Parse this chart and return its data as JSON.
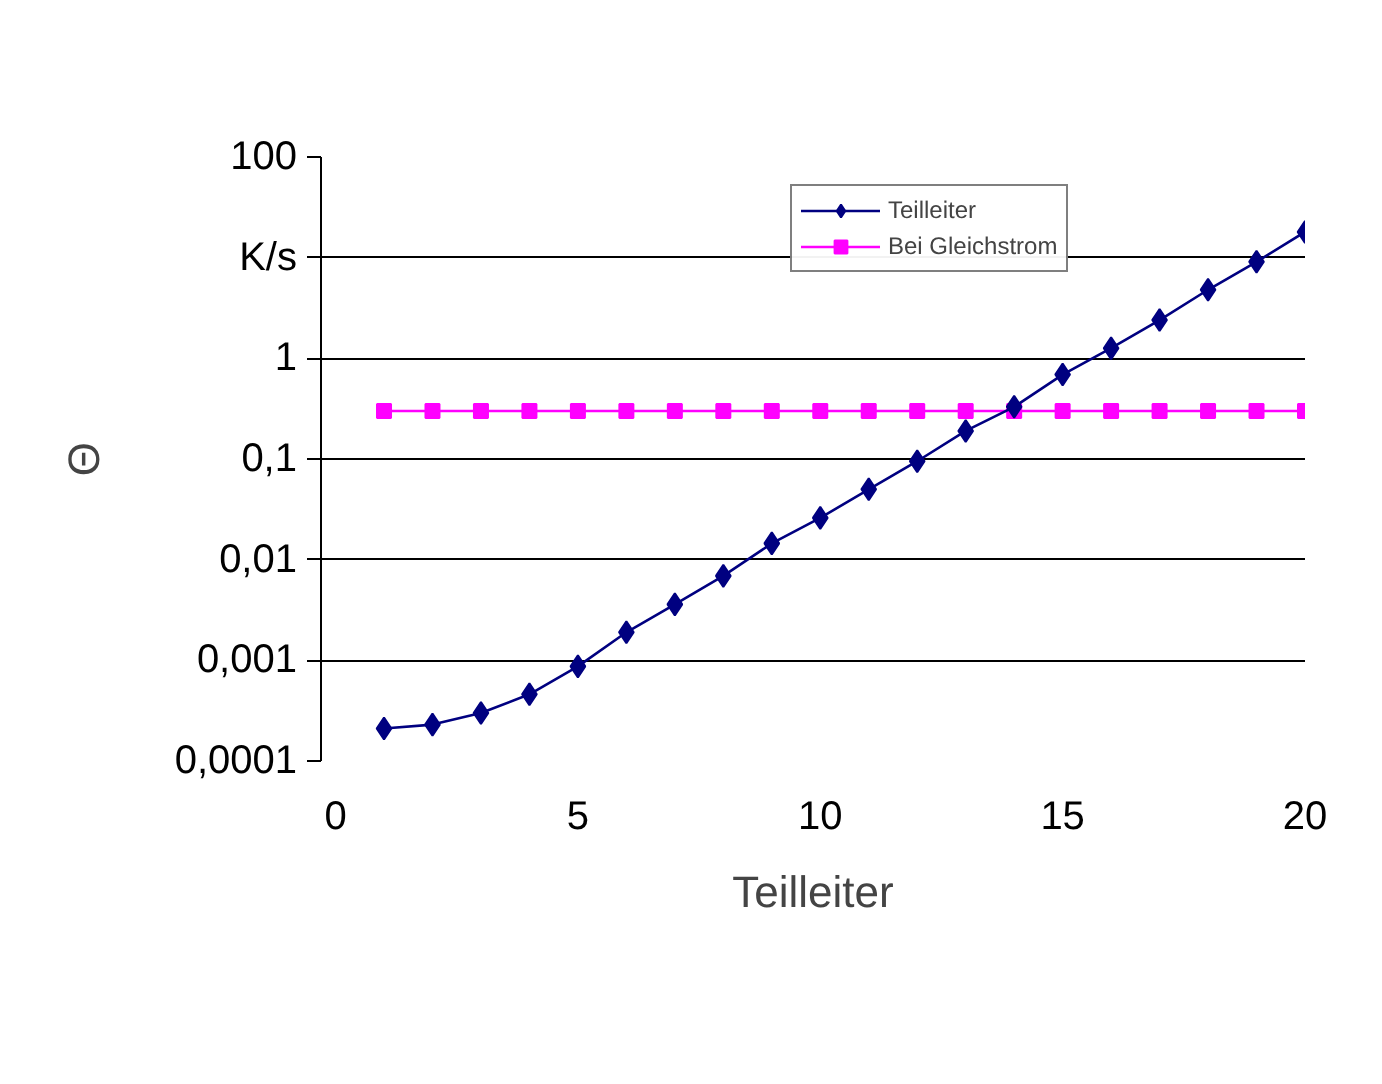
{
  "chart_data": {
    "type": "line",
    "xlabel": "Teilleiter",
    "ylabel": "Θ",
    "annotations": [
      "K/s"
    ],
    "x": [
      1,
      2,
      3,
      4,
      5,
      6,
      7,
      8,
      9,
      10,
      11,
      12,
      13,
      14,
      15,
      16,
      17,
      18,
      19,
      20
    ],
    "series": [
      {
        "name": "Teilleiter",
        "color": "#000080",
        "marker": "diamond",
        "values": [
          0.00021,
          0.00023,
          0.0003,
          0.00046,
          0.00087,
          0.0019,
          0.0036,
          0.0069,
          0.0145,
          0.026,
          0.05,
          0.095,
          0.19,
          0.33,
          0.69,
          1.26,
          2.4,
          4.8,
          9.1,
          18
        ]
      },
      {
        "name": "Bei Gleichstrom",
        "color": "#ff00ff",
        "marker": "square",
        "values": [
          0.3,
          0.3,
          0.3,
          0.3,
          0.3,
          0.3,
          0.3,
          0.3,
          0.3,
          0.3,
          0.3,
          0.3,
          0.3,
          0.3,
          0.3,
          0.3,
          0.3,
          0.3,
          0.3,
          0.3
        ]
      }
    ],
    "log": "y",
    "xlim": [
      -0.3,
      20
    ],
    "ylim": [
      0.0001,
      100
    ],
    "xticks": [
      0,
      5,
      10,
      15,
      20
    ],
    "yticks": [
      {
        "value": 0.0001,
        "label": "0,0001"
      },
      {
        "value": 0.001,
        "label": "0,001"
      },
      {
        "value": 0.01,
        "label": "0,01"
      },
      {
        "value": 0.1,
        "label": "0,1"
      },
      {
        "value": 1,
        "label": "1"
      },
      {
        "value": 10,
        "label": null
      },
      {
        "value": 100,
        "label": "100"
      }
    ],
    "grid": "y",
    "legend": "top right",
    "line_style": "solid"
  }
}
